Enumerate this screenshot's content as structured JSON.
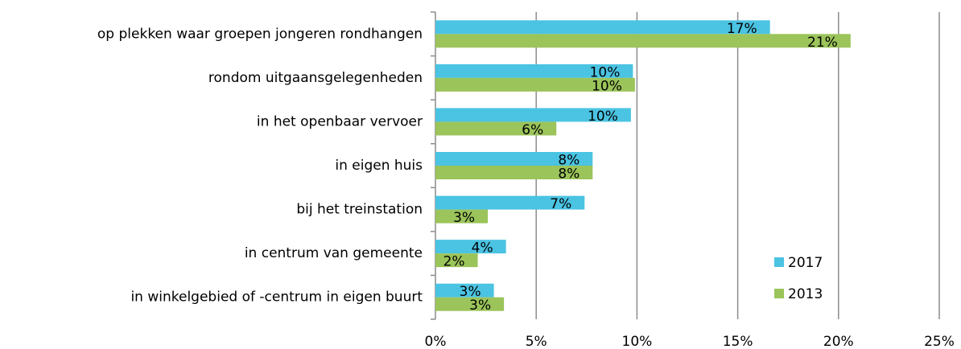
{
  "chart_data": {
    "type": "hbar",
    "categories": [
      "op plekken waar groepen jongeren rondhangen",
      "rondom uitgaansgelegenheden",
      "in het openbaar vervoer",
      "in eigen huis",
      "bij het treinstation",
      "in centrum van gemeente",
      "in winkelgebied of -centrum in eigen buurt"
    ],
    "series": [
      {
        "name": "2017",
        "color": "#4bc3e2",
        "values": [
          16.6,
          9.8,
          9.7,
          7.8,
          7.4,
          3.5,
          2.9
        ],
        "value_labels": [
          "17%",
          "10%",
          "10%",
          "8%",
          "7%",
          "4%",
          "3%"
        ]
      },
      {
        "name": "2013",
        "color": "#9bc45a",
        "values": [
          20.6,
          9.9,
          6.0,
          7.8,
          2.6,
          2.1,
          3.4
        ],
        "value_labels": [
          "21%",
          "10%",
          "6%",
          "8%",
          "3%",
          "2%",
          "3%"
        ]
      }
    ],
    "xlim": [
      0,
      25
    ],
    "xticks": [
      {
        "value": 0,
        "label": "0%"
      },
      {
        "value": 5,
        "label": "5%"
      },
      {
        "value": 10,
        "label": "10%"
      },
      {
        "value": 15,
        "label": "15%"
      },
      {
        "value": 20,
        "label": "20%"
      },
      {
        "value": 25,
        "label": "25%"
      }
    ],
    "grid": true,
    "legend": "lower right"
  }
}
